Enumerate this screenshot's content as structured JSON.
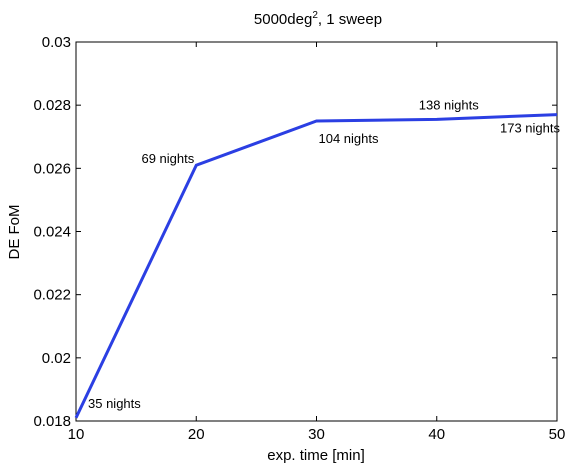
{
  "chart_data": {
    "type": "line",
    "title_base": "5000deg",
    "title_sup": "2",
    "title_rest": ", 1 sweep",
    "xlabel": "exp. time [min]",
    "ylabel": "DE FoM",
    "xlim": [
      10,
      50
    ],
    "ylim": [
      0.018,
      0.03
    ],
    "xticks": [
      10,
      20,
      30,
      40,
      50
    ],
    "xtick_labels": [
      "10",
      "20",
      "30",
      "40",
      "50"
    ],
    "yticks": [
      0.018,
      0.02,
      0.022,
      0.024,
      0.026,
      0.028,
      0.03
    ],
    "ytick_labels": [
      "0.018",
      "0.02",
      "0.022",
      "0.024",
      "0.026",
      "0.028",
      "0.03"
    ],
    "grid": false,
    "legend": "none",
    "series": [
      {
        "color": "#2b3fe3",
        "x": [
          10,
          20,
          30,
          40,
          50
        ],
        "y": [
          0.0181,
          0.0261,
          0.0275,
          0.02755,
          0.0277
        ]
      }
    ],
    "annotations": [
      {
        "text": "35 nights",
        "x": 10,
        "y": 0.0181
      },
      {
        "text": "69 nights",
        "x": 20,
        "y": 0.0261
      },
      {
        "text": "104 nights",
        "x": 30,
        "y": 0.0275
      },
      {
        "text": "138 nights",
        "x": 40,
        "y": 0.02755
      },
      {
        "text": "173 nights",
        "x": 50,
        "y": 0.0277
      }
    ]
  }
}
